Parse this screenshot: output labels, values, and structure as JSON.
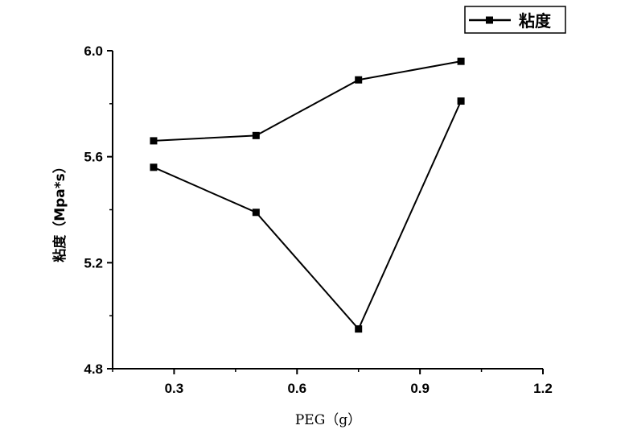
{
  "chart_data": {
    "type": "line",
    "xlabel": "PEG（g）",
    "ylabel": "粘度（Mpa*s）",
    "xlim": [
      0.15,
      1.2
    ],
    "ylim": [
      4.8,
      6.0
    ],
    "x_ticks": [
      "0.3",
      "0.6",
      "0.9",
      "1.2"
    ],
    "y_ticks": [
      "4.8",
      "5.2",
      "5.6",
      "6.0"
    ],
    "grid": false,
    "legend_position": "top-right",
    "series": [
      {
        "name": "粘度",
        "marker": "square",
        "color": "#000000",
        "segments": [
          {
            "x": [
              0.25,
              0.5,
              0.75,
              1.0
            ],
            "y": [
              5.66,
              5.68,
              5.89,
              5.96
            ]
          },
          {
            "x": [
              0.25,
              0.5,
              0.75,
              1.0
            ],
            "y": [
              5.56,
              5.39,
              4.95,
              5.81
            ]
          }
        ]
      }
    ]
  }
}
